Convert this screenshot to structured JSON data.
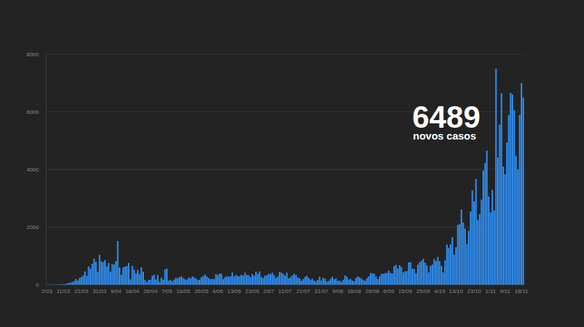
{
  "chart_data": {
    "type": "bar",
    "annotations": [
      {
        "text": "6489"
      },
      {
        "text": "novos casos"
      }
    ],
    "categories": [
      "2/03",
      null,
      null,
      null,
      null,
      null,
      null,
      null,
      null,
      "11/03",
      null,
      null,
      null,
      null,
      null,
      null,
      null,
      null,
      null,
      "21/03",
      null,
      null,
      null,
      null,
      null,
      null,
      null,
      null,
      null,
      "31/03",
      null,
      null,
      null,
      null,
      null,
      null,
      null,
      null,
      "9/04",
      null,
      null,
      null,
      null,
      null,
      null,
      null,
      null,
      "18/04",
      null,
      null,
      null,
      null,
      null,
      null,
      null,
      null,
      null,
      "28/04",
      null,
      null,
      null,
      null,
      null,
      null,
      null,
      null,
      "7/05",
      null,
      null,
      null,
      null,
      null,
      null,
      null,
      null,
      "16/05",
      null,
      null,
      null,
      null,
      null,
      null,
      null,
      null,
      null,
      "26/05",
      null,
      null,
      null,
      null,
      null,
      null,
      null,
      null,
      "4/06",
      null,
      null,
      null,
      null,
      null,
      null,
      null,
      null,
      "13/06",
      null,
      null,
      null,
      null,
      null,
      null,
      null,
      null,
      null,
      "23/06",
      null,
      null,
      null,
      null,
      null,
      null,
      null,
      null,
      "2/07",
      null,
      null,
      null,
      null,
      null,
      null,
      null,
      null,
      "11/07",
      null,
      null,
      null,
      null,
      null,
      null,
      null,
      null,
      null,
      "21/07",
      null,
      null,
      null,
      null,
      null,
      null,
      null,
      null,
      null,
      "31/07",
      null,
      null,
      null,
      null,
      null,
      null,
      null,
      null,
      "9/08",
      null,
      null,
      null,
      null,
      null,
      null,
      null,
      null,
      "18/08",
      null,
      null,
      null,
      null,
      null,
      null,
      null,
      null,
      null,
      "28/08",
      null,
      null,
      null,
      null,
      null,
      null,
      null,
      null,
      "6/09",
      null,
      null,
      null,
      null,
      null,
      null,
      null,
      null,
      "15/09",
      null,
      null,
      null,
      null,
      null,
      null,
      null,
      null,
      null,
      "25/09",
      null,
      null,
      null,
      null,
      null,
      null,
      null,
      null,
      "4/10",
      null,
      null,
      null,
      null,
      null,
      null,
      null,
      null,
      "13/10",
      null,
      null,
      null,
      null,
      null,
      null,
      null,
      null,
      null,
      "23/10",
      null,
      null,
      null,
      null,
      null,
      null,
      null,
      null,
      "1/11",
      null,
      null,
      null,
      null,
      null,
      null,
      null,
      "9/11",
      null,
      null,
      null,
      null,
      null,
      null,
      null,
      null,
      "18/11",
      null
    ],
    "values": [
      2,
      2,
      1,
      4,
      4,
      8,
      9,
      9,
      11,
      18,
      19,
      34,
      57,
      76,
      86,
      117,
      194,
      143,
      235,
      260,
      320,
      460,
      302,
      633,
      549,
      724,
      902,
      792,
      446,
      1035,
      808,
      783,
      852,
      638,
      754,
      452,
      712,
      699,
      815,
      1516,
      598,
      349,
      598,
      629,
      643,
      750,
      181,
      657,
      521,
      392,
      516,
      371,
      603,
      444,
      163,
      92,
      163,
      163,
      305,
      349,
      181,
      334,
      92,
      242,
      178,
      533,
      553,
      138,
      163,
      111,
      173,
      234,
      219,
      264,
      285,
      226,
      183,
      173,
      252,
      219,
      288,
      252,
      213,
      162,
      165,
      257,
      304,
      350,
      285,
      228,
      193,
      200,
      195,
      366,
      331,
      382,
      377,
      192,
      259,
      294,
      273,
      294,
      424,
      284,
      346,
      300,
      292,
      346,
      315,
      417,
      331,
      328,
      259,
      367,
      311,
      451,
      375,
      457,
      266,
      229,
      313,
      328,
      375,
      374,
      413,
      328,
      230,
      287,
      443,
      418,
      375,
      313,
      421,
      219,
      257,
      315,
      375,
      339,
      252,
      221,
      135,
      194,
      269,
      312,
      236,
      172,
      204,
      135,
      111,
      167,
      278,
      138,
      243,
      204,
      106,
      132,
      204,
      278,
      186,
      213,
      131,
      143,
      96,
      167,
      325,
      278,
      180,
      203,
      142,
      120,
      233,
      290,
      253,
      215,
      160,
      132,
      218,
      291,
      401,
      396,
      380,
      282,
      192,
      285,
      377,
      374,
      401,
      406,
      484,
      405,
      390,
      646,
      687,
      555,
      673,
      613,
      426,
      463,
      470,
      770,
      780,
      552,
      552,
      396,
      691,
      778,
      833,
      894,
      767,
      663,
      426,
      655,
      698,
      891,
      825,
      963,
      817,
      650,
      427,
      846,
      1394,
      1278,
      1394,
      1646,
      1046,
      1302,
      2072,
      2101,
      2608,
      2153,
      1940,
      1405,
      1862,
      2535,
      3270,
      2888,
      3669,
      2247,
      2447,
      2951,
      3960,
      4224,
      4656,
      3062,
      2506,
      3286,
      2579,
      7497,
      4410,
      5550,
      6640,
      4096,
      3829,
      4935,
      5891,
      6658,
      6602,
      6060,
      4473,
      4007,
      5891,
      6994,
      6489
    ],
    "color": "#2f8ef2",
    "ylim": [
      0,
      8000
    ],
    "yticks": [
      0,
      2000,
      4000,
      6000,
      8000
    ],
    "grid": true
  }
}
